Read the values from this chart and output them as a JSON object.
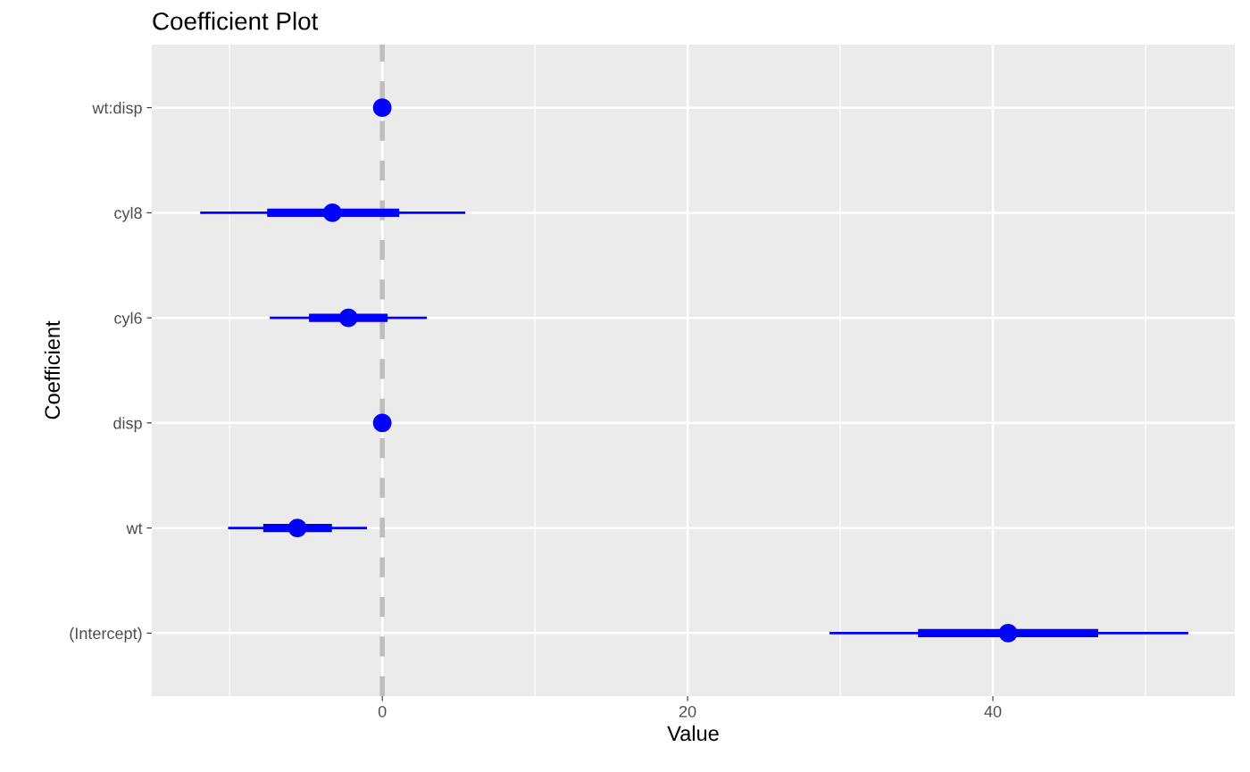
{
  "chart_data": {
    "type": "scatter",
    "orientation": "horizontal",
    "title": "Coefficient Plot",
    "xlabel": "Value",
    "ylabel": "Coefficient",
    "categories": [
      "wt:disp",
      "cyl8",
      "cyl6",
      "disp",
      "wt",
      "(Intercept)"
    ],
    "series": [
      {
        "type": "bar",
        "color": "#0000ff",
        "base": [
          null,
          -7.54,
          -4.8,
          null,
          -7.8,
          35.1
        ],
        "values": [
          null,
          8.65,
          5.15,
          null,
          4.5,
          11.8
        ]
      },
      {
        "color": "#0000ff",
        "marker": "circle",
        "values": [
          0,
          -3.27,
          -2.22,
          0,
          -5.56,
          41.0
        ],
        "errors": [
          null,
          [
            -11.93,
            5.44
          ],
          [
            -7.37,
            2.92
          ],
          null,
          [
            -10.1,
            -1.0
          ],
          [
            29.3,
            52.8
          ]
        ]
      }
    ],
    "xlim": [
      -15.1,
      55.85
    ],
    "xticks": [
      {
        "value": -10,
        "label": null
      },
      0,
      {
        "value": 10,
        "label": null
      },
      20,
      {
        "value": 30,
        "label": null
      },
      40,
      {
        "value": 50,
        "label": null
      }
    ],
    "ref_lines": [
      {
        "axis": "x",
        "value": 0,
        "color": "#bebebe",
        "line_style": "dashed"
      }
    ],
    "grid": true,
    "legend": false
  }
}
